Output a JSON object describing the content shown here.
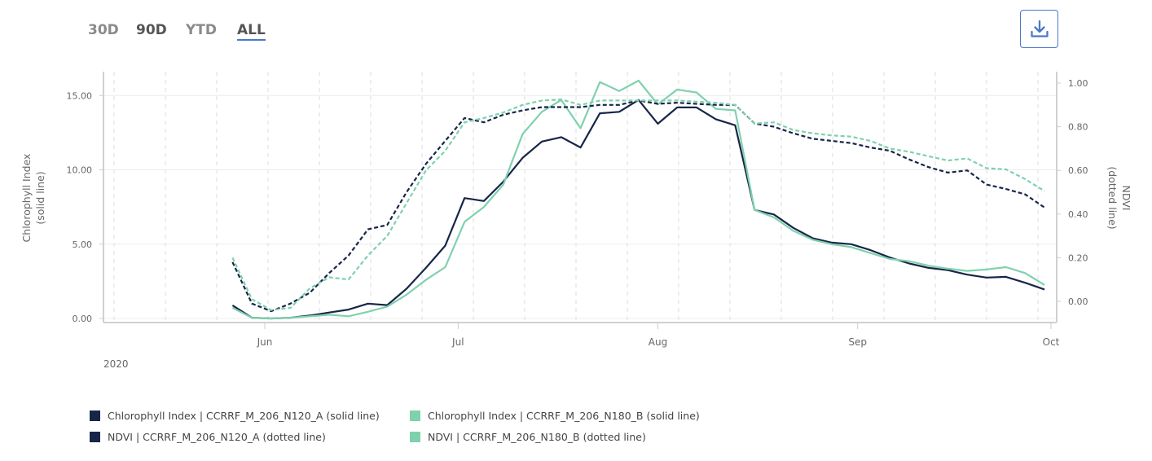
{
  "range_buttons": [
    {
      "label": "30D"
    },
    {
      "label": "90D"
    },
    {
      "label": "YTD"
    },
    {
      "label": "ALL",
      "active": true
    }
  ],
  "download_icon": "download-icon",
  "colors": {
    "n120": "#172648",
    "n180": "#7fd1ae",
    "accent": "#4a78c8"
  },
  "chart_data": {
    "type": "line",
    "title": "",
    "x_start": "2020-05-27",
    "x_step_days": 3,
    "year_label": "2020",
    "x_ticks": [
      "Jun",
      "Jul",
      "Aug",
      "Sep",
      "Oct"
    ],
    "ylabel_left": [
      "Chlorophyll Index",
      "(solid line)"
    ],
    "ylabel_right": [
      "NDVI",
      "(dotted line)"
    ],
    "ylim_left": [
      -0.3,
      16.5
    ],
    "ylim_right": [
      -0.1,
      1.05
    ],
    "y_ticks_left": [
      "0.00",
      "5.00",
      "10.00",
      "15.00"
    ],
    "y_ticks_right": [
      "0.00",
      "0.20",
      "0.40",
      "0.60",
      "0.80",
      "1.00"
    ],
    "series": [
      {
        "name": "Chlorophyll Index | CCRRF_M_206_N120_A (solid line)",
        "axis": "left",
        "style": "solid",
        "color": "#172648",
        "values": [
          0.88,
          0.05,
          0.0,
          0.05,
          0.2,
          0.4,
          0.6,
          1.0,
          0.9,
          2.0,
          3.4,
          4.9,
          8.1,
          7.9,
          9.2,
          10.8,
          11.9,
          12.2,
          11.5,
          13.8,
          13.9,
          14.7,
          13.1,
          14.2,
          14.2,
          13.4,
          13.0,
          7.3,
          7.0,
          6.1,
          5.4,
          5.1,
          5.0,
          4.6,
          4.1,
          3.7,
          3.4,
          3.25,
          2.95,
          2.75,
          2.8,
          2.4,
          1.95
        ]
      },
      {
        "name": "Chlorophyll Index | CCRRF_M_206_N180_B (solid line)",
        "axis": "left",
        "style": "solid",
        "color": "#7fd1ae",
        "values": [
          0.72,
          0.05,
          0.0,
          0.05,
          0.15,
          0.25,
          0.15,
          0.45,
          0.8,
          1.6,
          2.6,
          3.45,
          6.5,
          7.5,
          9.0,
          12.4,
          13.9,
          14.7,
          12.8,
          15.9,
          15.3,
          16.0,
          14.4,
          15.4,
          15.2,
          14.1,
          14.0,
          7.3,
          6.8,
          5.9,
          5.3,
          5.0,
          4.8,
          4.4,
          4.0,
          3.85,
          3.55,
          3.35,
          3.2,
          3.3,
          3.45,
          3.05,
          2.25
        ]
      },
      {
        "name": "NDVI | CCRRF_M_206_N120_A (dotted line)",
        "axis": "right",
        "style": "dashed",
        "color": "#172648",
        "values": [
          0.18,
          -0.01,
          -0.045,
          -0.01,
          0.04,
          0.13,
          0.21,
          0.33,
          0.35,
          0.5,
          0.63,
          0.735,
          0.84,
          0.82,
          0.855,
          0.875,
          0.89,
          0.89,
          0.89,
          0.9,
          0.9,
          0.92,
          0.905,
          0.91,
          0.905,
          0.9,
          0.9,
          0.815,
          0.8,
          0.77,
          0.745,
          0.735,
          0.725,
          0.705,
          0.69,
          0.65,
          0.615,
          0.59,
          0.6,
          0.535,
          0.515,
          0.49,
          0.43
        ]
      },
      {
        "name": "NDVI | CCRRF_M_206_N180_B (dotted line)",
        "axis": "right",
        "style": "dashed",
        "color": "#7fd1ae",
        "values": [
          0.2,
          0.01,
          -0.04,
          -0.03,
          0.06,
          0.11,
          0.1,
          0.21,
          0.3,
          0.45,
          0.6,
          0.69,
          0.82,
          0.84,
          0.865,
          0.9,
          0.92,
          0.925,
          0.9,
          0.92,
          0.92,
          0.92,
          0.92,
          0.92,
          0.915,
          0.91,
          0.9,
          0.815,
          0.82,
          0.785,
          0.77,
          0.76,
          0.755,
          0.735,
          0.7,
          0.685,
          0.665,
          0.645,
          0.655,
          0.61,
          0.605,
          0.56,
          0.505
        ]
      }
    ],
    "legend": [
      {
        "label": "Chlorophyll Index | CCRRF_M_206_N120_A (solid line)",
        "color": "#172648"
      },
      {
        "label": "Chlorophyll Index | CCRRF_M_206_N180_B (solid line)",
        "color": "#7fd1ae"
      },
      {
        "label": "NDVI | CCRRF_M_206_N120_A (dotted line)",
        "color": "#172648"
      },
      {
        "label": "NDVI | CCRRF_M_206_N180_B (dotted line)",
        "color": "#7fd1ae"
      }
    ],
    "legend_position": "bottom-left"
  }
}
